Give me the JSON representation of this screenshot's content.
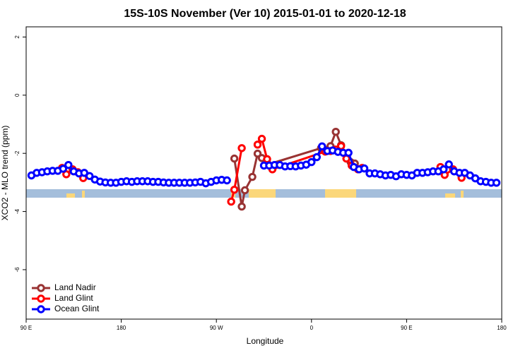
{
  "chart_data": {
    "type": "line",
    "title": "15S-10S November (Ver 10)   2015-01-01 to 2020-12-18",
    "x_label": "Longitude",
    "y_label": "XCO2 - MLO trend (ppm)",
    "xlim": [
      90,
      540
    ],
    "ylim": [
      -7.7,
      2.35
    ],
    "xticks": [
      {
        "value": 90,
        "label": "90 E"
      },
      180,
      {
        "value": 270,
        "label": "90 W"
      },
      {
        "value": 360,
        "label": "0"
      },
      {
        "value": 450,
        "label": "90 E"
      },
      {
        "value": 540,
        "label": "180"
      }
    ],
    "yticks": [
      -6,
      -4,
      -2,
      0,
      2
    ],
    "legend": "bottom-left",
    "series": [
      {
        "name": "Land Nadir",
        "color": "#993333",
        "x": [
          287,
          294,
          297,
          304,
          309,
          313,
          319,
          369,
          378,
          383,
          388,
          397,
          401
        ],
        "values": [
          -2.18,
          -3.83,
          -3.27,
          -2.81,
          -2.01,
          -2.16,
          -2.38,
          -1.82,
          -1.75,
          -1.26,
          -1.72,
          -2.3,
          -2.35
        ]
      },
      {
        "name": "Land Glint",
        "color": "#ff0000",
        "x": [
          124,
          128,
          134,
          139,
          144,
          200,
          284,
          287,
          294,
          300,
          309,
          313,
          318,
          323,
          373,
          378,
          383,
          388,
          393,
          398,
          404,
          408,
          450,
          482,
          486,
          494,
          502
        ],
        "values": [
          -2.5,
          -2.72,
          -2.55,
          -2.65,
          -2.85,
          null,
          -3.66,
          -3.25,
          -1.82,
          null,
          -1.7,
          -1.5,
          -2.2,
          -2.55,
          -1.94,
          -1.92,
          -1.87,
          -1.75,
          -2.18,
          -2.42,
          -2.55,
          -2.5,
          null,
          -2.47,
          -2.74,
          -2.55,
          -2.84
        ]
      },
      {
        "name": "Ocean Glint",
        "color": "#0000ff",
        "x": [
          95,
          100,
          105,
          110,
          115,
          120,
          125,
          130,
          135,
          140,
          145,
          150,
          155,
          160,
          165,
          170,
          175,
          180,
          185,
          190,
          195,
          200,
          205,
          210,
          215,
          220,
          225,
          230,
          235,
          240,
          245,
          250,
          255,
          260,
          265,
          270,
          275,
          280,
          285,
          315,
          320,
          325,
          330,
          335,
          340,
          345,
          350,
          355,
          360,
          365,
          370,
          375,
          380,
          385,
          390,
          395,
          400,
          405,
          410,
          415,
          420,
          425,
          430,
          435,
          440,
          445,
          450,
          455,
          460,
          465,
          470,
          475,
          480,
          485,
          490,
          495,
          500,
          505,
          510,
          515,
          520,
          525,
          530,
          535
        ],
        "values": [
          -2.76,
          -2.67,
          -2.65,
          -2.62,
          -2.6,
          -2.6,
          -2.53,
          -2.4,
          -2.62,
          -2.69,
          -2.67,
          -2.78,
          -2.9,
          -2.97,
          -3.0,
          -3.01,
          -3.01,
          -2.98,
          -2.96,
          -2.98,
          -2.96,
          -2.96,
          -2.96,
          -2.98,
          -2.98,
          -3.0,
          -3.01,
          -3.01,
          -3.01,
          -3.01,
          -3.01,
          -3.0,
          -2.98,
          -3.03,
          -2.98,
          -2.93,
          -2.91,
          -2.93,
          null,
          -2.42,
          -2.42,
          -2.4,
          -2.4,
          -2.45,
          -2.44,
          -2.45,
          -2.42,
          -2.39,
          -2.3,
          -2.13,
          -1.76,
          -1.92,
          -1.9,
          -1.95,
          -1.98,
          -1.98,
          -2.47,
          -2.55,
          -2.52,
          -2.69,
          -2.69,
          -2.72,
          -2.76,
          -2.74,
          -2.79,
          -2.72,
          -2.74,
          -2.76,
          -2.67,
          -2.67,
          -2.65,
          -2.62,
          -2.62,
          -2.55,
          -2.38,
          -2.62,
          -2.67,
          -2.67,
          -2.76,
          -2.86,
          -2.96,
          -2.98,
          -3.01,
          -3.01
        ]
      }
    ]
  }
}
